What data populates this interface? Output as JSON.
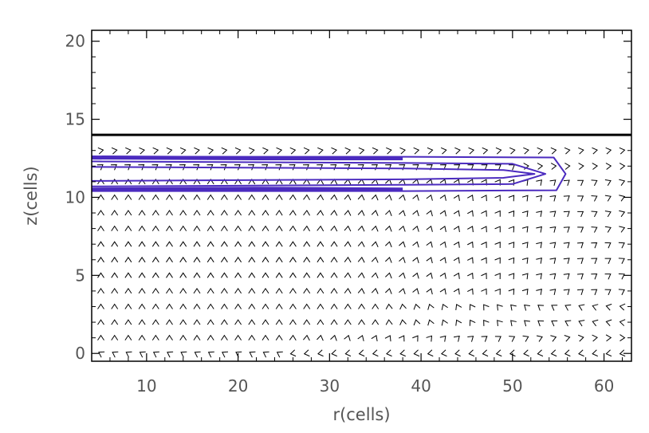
{
  "chart_data": {
    "type": "vector-field",
    "title": "",
    "xlabel": "r(cells)",
    "ylabel": "z(cells)",
    "xlim": [
      4,
      63
    ],
    "ylim": [
      -0.5,
      20.7
    ],
    "x_ticks": [
      10,
      20,
      30,
      40,
      50,
      60
    ],
    "y_ticks": [
      0,
      5,
      10,
      15,
      20
    ],
    "x_tick_labels": [
      "10",
      "20",
      "30",
      "40",
      "50",
      "60"
    ],
    "y_tick_labels": [
      "0",
      "5",
      "10",
      "15",
      "20"
    ],
    "grid": false,
    "legend": "none",
    "horizontal_line": {
      "z": 14,
      "color": "#000000"
    },
    "vector_grid": {
      "r_start": 5,
      "r_end": 62,
      "r_step": 1.5,
      "z_start": 0,
      "z_end": 13,
      "z_step": 1,
      "color": "#000000"
    },
    "contours": [
      {
        "name": "",
        "color": "#4b2bbf",
        "points": [
          [
            4,
            12.6
          ],
          [
            38,
            12.6
          ],
          [
            54.5,
            12.55
          ],
          [
            55.8,
            11.5
          ],
          [
            54.8,
            10.45
          ],
          [
            38,
            10.4
          ],
          [
            4,
            10.4
          ]
        ]
      },
      {
        "name": "",
        "color": "#4b2bbf",
        "points": [
          [
            4,
            12.3
          ],
          [
            38,
            12.2
          ],
          [
            50,
            12.15
          ],
          [
            53.6,
            11.5
          ],
          [
            50,
            10.85
          ],
          [
            38,
            10.8
          ],
          [
            4,
            10.7
          ]
        ]
      },
      {
        "name": "",
        "color": "#4b2bbf",
        "points": [
          [
            4,
            11.95
          ],
          [
            38,
            11.85
          ],
          [
            49,
            11.75
          ],
          [
            52.4,
            11.5
          ],
          [
            49,
            11.25
          ],
          [
            38,
            11.15
          ],
          [
            4,
            11.05
          ]
        ]
      },
      {
        "name": "",
        "color": "#4b2bbf",
        "points": [
          [
            4,
            12.55
          ],
          [
            22,
            12.5
          ],
          [
            38,
            12.5
          ]
        ]
      },
      {
        "name": "",
        "color": "#4b2bbf",
        "points": [
          [
            4,
            10.5
          ],
          [
            22,
            10.55
          ],
          [
            38,
            10.5
          ]
        ]
      }
    ]
  }
}
